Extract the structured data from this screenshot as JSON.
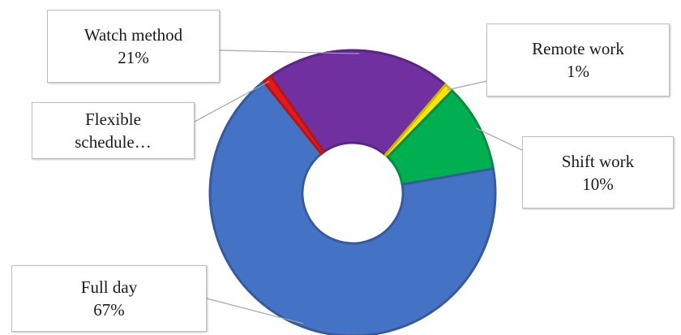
{
  "chart_data": {
    "type": "pie",
    "variant": "doughnut",
    "slices": [
      {
        "label": "Watch method",
        "percent_label": "21%",
        "value": 21,
        "color": "#7030a0"
      },
      {
        "label": "Remote work",
        "percent_label": "1%",
        "value": 1,
        "color": "#ffe600"
      },
      {
        "label": "Shift work",
        "percent_label": "10%",
        "value": 10,
        "color": "#00b050"
      },
      {
        "label": "Full day",
        "percent_label": "67%",
        "value": 67,
        "color": "#4472c4"
      },
      {
        "label": "Flexible schedule…",
        "percent_label": "",
        "value": 1,
        "color": "#e31a1c"
      }
    ],
    "legend": "none",
    "data_labels": "callouts"
  }
}
